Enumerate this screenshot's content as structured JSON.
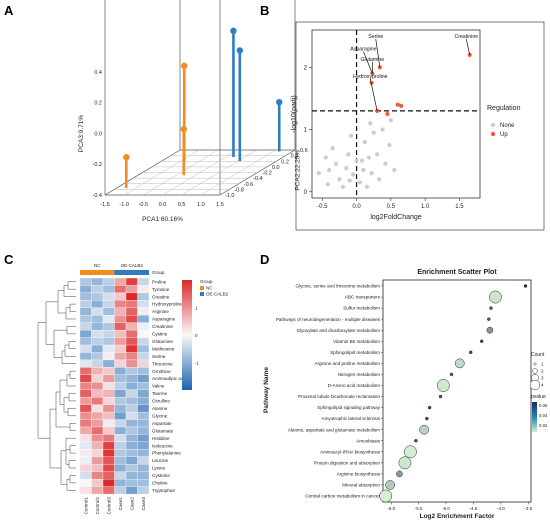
{
  "panel_labels": [
    "A",
    "B",
    "C",
    "D"
  ],
  "chart_data": [
    {
      "panel": "A",
      "type": "scatter",
      "subtype": "3d-lollipop",
      "axes": {
        "x": {
          "label": "PCA1:60.16%",
          "ticks": [
            "-1.5",
            "-1.0",
            "-0.5",
            "0.0",
            "0.5",
            "1.0",
            "1.5"
          ]
        },
        "y": {
          "label": "PCA2:22.25%",
          "ticks": [
            "-1.0",
            "-0.8",
            "-0.6",
            "-0.4",
            "-0.2",
            "0.0",
            "0.2",
            "0.4",
            "0.6"
          ]
        },
        "z": {
          "label": "PCA3:9.71%",
          "ticks": [
            "-0.4",
            "-0.2",
            "0.0",
            "0.2",
            "0.4"
          ]
        }
      },
      "series": [
        {
          "color": "#f28c1f",
          "points": [
            {
              "x": -0.9,
              "y": 0.2,
              "z": 0.22
            },
            {
              "x": -0.3,
              "y": -0.3,
              "z": -0.1
            },
            {
              "x": -1.25,
              "y": -0.75,
              "z": -0.2
            }
          ]
        },
        {
          "color": "#2e7ebf",
          "points": [
            {
              "x": 0.2,
              "y": 0.35,
              "z": 0.42
            },
            {
              "x": 0.55,
              "y": 0.2,
              "z": 0.32
            },
            {
              "x": 1.15,
              "y": 0.55,
              "z": -0.08
            }
          ]
        }
      ]
    },
    {
      "panel": "B",
      "type": "scatter",
      "subtype": "volcano",
      "xlabel": "log2FoldChange",
      "ylabel": "-log10(padj)",
      "xlim": [
        -0.65,
        1.8
      ],
      "ylim": [
        -0.1,
        2.6
      ],
      "xticks": [
        "-0.5",
        "0.0",
        "0.5",
        "1.0",
        "1.5"
      ],
      "yticks": [
        "0",
        "1",
        "2"
      ],
      "threshold_x": 0,
      "threshold_y": 1.3,
      "legend": {
        "title": "Regulation",
        "items": [
          {
            "label": "None",
            "color": "#cccccc"
          },
          {
            "label": "Up",
            "color": "#f05a3f"
          }
        ]
      },
      "labels": [
        "Serine",
        "Creatinine",
        "Asparagine",
        "Glutamine",
        "Hydroxyproline"
      ],
      "none_points": [
        [
          -0.55,
          0.3
        ],
        [
          -0.45,
          0.55
        ],
        [
          -0.42,
          0.12
        ],
        [
          -0.35,
          0.7
        ],
        [
          -0.3,
          0.45
        ],
        [
          -0.25,
          0.2
        ],
        [
          -0.2,
          0.08
        ],
        [
          -0.15,
          0.38
        ],
        [
          -0.1,
          0.18
        ],
        [
          -0.12,
          0.6
        ],
        [
          -0.05,
          0.28
        ],
        [
          0.0,
          0.5
        ],
        [
          0.05,
          0.15
        ],
        [
          0.1,
          0.35
        ],
        [
          0.12,
          0.8
        ],
        [
          0.15,
          0.08
        ],
        [
          0.18,
          0.55
        ],
        [
          0.22,
          0.3
        ],
        [
          0.25,
          0.95
        ],
        [
          0.3,
          0.6
        ],
        [
          0.33,
          0.2
        ],
        [
          0.38,
          1.0
        ],
        [
          0.42,
          0.45
        ],
        [
          0.48,
          0.75
        ],
        [
          0.55,
          0.35
        ],
        [
          0.5,
          1.15
        ],
        [
          -0.4,
          0.35
        ],
        [
          -0.08,
          0.9
        ],
        [
          0.08,
          0.5
        ],
        [
          0.2,
          1.1
        ]
      ],
      "up_points": [
        [
          0.22,
          1.75
        ],
        [
          0.23,
          1.9
        ],
        [
          0.34,
          2.0
        ],
        [
          0.3,
          1.3
        ],
        [
          0.45,
          1.25
        ],
        [
          0.6,
          1.4
        ],
        [
          0.65,
          1.38
        ],
        [
          1.65,
          2.2
        ]
      ]
    },
    {
      "panel": "C",
      "type": "heatmap",
      "columns": [
        "Control1",
        "Control2",
        "Control3",
        "Case1",
        "Case2",
        "Case3"
      ],
      "groups": [
        {
          "label": "NC",
          "color": "#f28c1f"
        },
        {
          "label": "OE-CALB2",
          "color": "#2e7ebf"
        }
      ],
      "group_title": "Group",
      "rows": [
        "Proline",
        "Tyrosine",
        "Creatine",
        "Hydroxyproline",
        "Arginine",
        "Asparagine",
        "Creatinine",
        "Cystine",
        "Glutamine",
        "Methionine",
        "Serine",
        "Threonine",
        "Ornithine",
        "Aminoadipic acid",
        "Valine",
        "Taurine",
        "Citrulline",
        "Alanine",
        "Glycine",
        "Aspartate",
        "Glutamate",
        "Histidine",
        "Isoleucine",
        "Phenylalanine",
        "Leucine",
        "Lysine",
        "Cysteine",
        "Choline",
        "Tryptophan"
      ],
      "values": [
        [
          -0.6,
          -0.8,
          -0.5,
          0.7,
          1.6,
          -0.4
        ],
        [
          -0.9,
          -0.5,
          -0.7,
          1.2,
          0.8,
          0.1
        ],
        [
          -0.7,
          -0.6,
          -0.3,
          0.4,
          1.8,
          -0.6
        ],
        [
          -0.5,
          -0.9,
          -0.4,
          1.0,
          1.1,
          -0.3
        ],
        [
          -0.8,
          -0.3,
          -0.7,
          0.6,
          1.3,
          -0.1
        ],
        [
          -0.6,
          -0.7,
          -0.2,
          0.9,
          1.5,
          -0.9
        ],
        [
          -0.4,
          -0.8,
          -0.6,
          1.3,
          0.6,
          -0.1
        ],
        [
          -1.0,
          -0.3,
          -0.4,
          0.5,
          1.2,
          0.0
        ],
        [
          -0.7,
          -0.5,
          -0.6,
          0.8,
          1.4,
          -0.4
        ],
        [
          -0.3,
          -0.9,
          -0.2,
          0.4,
          1.7,
          -0.7
        ],
        [
          -0.8,
          -0.6,
          0.1,
          0.7,
          1.0,
          -0.4
        ],
        [
          -0.2,
          -0.4,
          -0.9,
          0.3,
          0.9,
          0.3
        ],
        [
          1.2,
          0.6,
          0.4,
          -0.9,
          -0.6,
          -0.7
        ],
        [
          1.5,
          0.3,
          0.8,
          -0.7,
          -0.8,
          -1.1
        ],
        [
          1.0,
          0.9,
          0.2,
          -0.5,
          -0.9,
          -0.7
        ],
        [
          1.3,
          0.5,
          0.6,
          -1.0,
          -0.4,
          -1.0
        ],
        [
          0.8,
          1.1,
          0.3,
          -0.6,
          -0.7,
          -0.9
        ],
        [
          1.4,
          0.2,
          0.9,
          -0.8,
          -0.5,
          -1.2
        ],
        [
          0.9,
          0.7,
          0.5,
          -1.1,
          -0.3,
          -0.7
        ],
        [
          1.1,
          0.8,
          0.1,
          -0.4,
          -0.8,
          -0.8
        ],
        [
          0.7,
          1.2,
          0.4,
          -0.9,
          -0.6,
          -0.8
        ],
        [
          0.2,
          0.9,
          1.1,
          -0.3,
          -0.8,
          -1.1
        ],
        [
          -0.2,
          0.6,
          1.6,
          -0.5,
          -0.9,
          -1.0
        ],
        [
          0.1,
          0.3,
          1.7,
          -0.6,
          -0.7,
          -0.8
        ],
        [
          -0.1,
          0.8,
          1.4,
          -0.7,
          -1.0,
          -0.4
        ],
        [
          0.3,
          0.5,
          1.5,
          -0.9,
          -0.6,
          -0.8
        ],
        [
          -0.3,
          1.0,
          1.3,
          -0.4,
          -0.8,
          -0.8
        ],
        [
          0.0,
          0.4,
          1.8,
          -0.8,
          -0.7,
          -0.7
        ],
        [
          0.2,
          0.7,
          1.2,
          -0.5,
          -1.1,
          -0.5
        ]
      ],
      "scale_ticks": [
        "1",
        "0",
        "-1"
      ],
      "scale_range": [
        -2,
        2
      ]
    },
    {
      "panel": "D",
      "type": "scatter",
      "subtype": "enrichment-bubble",
      "title": "Enrichment Scatter Plot",
      "xlabel": "Log2 Enrichment Factor",
      "ylabel": "Pathway Name",
      "xlim": [
        -6.15,
        -3.45
      ],
      "xticks": [
        "-6.0",
        "-5.5",
        "-5.0",
        "-4.5",
        "-4.0",
        "-3.5"
      ],
      "legend_count": {
        "title": "Count",
        "values": [
          1,
          2,
          3,
          4
        ]
      },
      "legend_pvalue": {
        "title": "pvalue",
        "ticks": [
          "0.06",
          "0.04",
          "0.02"
        ]
      },
      "pathways": [
        {
          "name": "Glycine, serine and threonine metabolism",
          "x": -3.55,
          "count": 1,
          "pvalue": 0.065
        },
        {
          "name": "ABC transporters",
          "x": -4.1,
          "count": 4,
          "pvalue": 0.006
        },
        {
          "name": "Sulfur metabolism",
          "x": -4.18,
          "count": 1,
          "pvalue": 0.05
        },
        {
          "name": "Pathways of neurodegeneration - multiple diseases",
          "x": -4.22,
          "count": 1,
          "pvalue": 0.05
        },
        {
          "name": "Glyoxylate and dicarboxylate metabolism",
          "x": -4.2,
          "count": 2,
          "pvalue": 0.03
        },
        {
          "name": "Vitamin B6 metabolism",
          "x": -4.35,
          "count": 1,
          "pvalue": 0.055
        },
        {
          "name": "Sphingolipid metabolism",
          "x": -4.55,
          "count": 1,
          "pvalue": 0.055
        },
        {
          "name": "Arginine and proline metabolism",
          "x": -4.75,
          "count": 3,
          "pvalue": 0.01
        },
        {
          "name": "Nitrogen metabolism",
          "x": -4.9,
          "count": 1,
          "pvalue": 0.05
        },
        {
          "name": "D-Amino acid metabolism",
          "x": -5.05,
          "count": 4,
          "pvalue": 0.005
        },
        {
          "name": "Proximal tubule bicarbonate reclamation",
          "x": -5.1,
          "count": 1,
          "pvalue": 0.05
        },
        {
          "name": "Sphingolipid signaling pathway",
          "x": -5.3,
          "count": 1,
          "pvalue": 0.055
        },
        {
          "name": "Amyotrophic lateral sclerosis",
          "x": -5.35,
          "count": 1,
          "pvalue": 0.055
        },
        {
          "name": "Alanine, aspartate and glutamate metabolism",
          "x": -5.4,
          "count": 3,
          "pvalue": 0.012
        },
        {
          "name": "Amoebiasis",
          "x": -5.55,
          "count": 1,
          "pvalue": 0.055
        },
        {
          "name": "Aminoacyl-tRNA biosynthesis",
          "x": -5.65,
          "count": 4,
          "pvalue": 0.004
        },
        {
          "name": "Protein digestion and absorption",
          "x": -5.75,
          "count": 4,
          "pvalue": 0.006
        },
        {
          "name": "Arginine biosynthesis",
          "x": -5.85,
          "count": 2,
          "pvalue": 0.03
        },
        {
          "name": "Mineral absorption",
          "x": -6.02,
          "count": 3,
          "pvalue": 0.015
        },
        {
          "name": "Central carbon metabolism in cancer",
          "x": -6.1,
          "count": 4,
          "pvalue": 0.003
        }
      ]
    }
  ]
}
